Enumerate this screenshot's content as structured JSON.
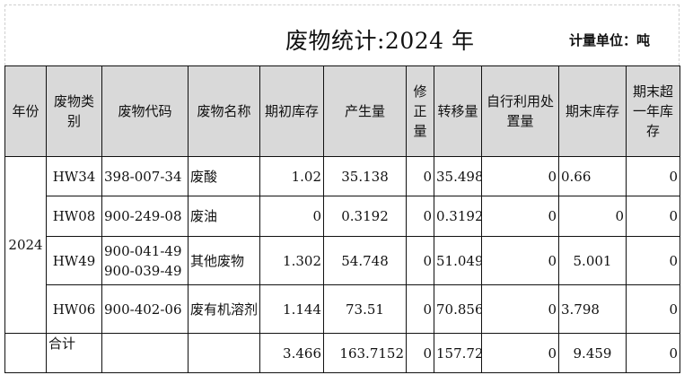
{
  "title": "废物统计:2024 年",
  "unit": "计量单位：吨",
  "headers": [
    "年份",
    "废物类别",
    "废物代码",
    "废物名称",
    "期初库存",
    "产生量",
    "修正量",
    "转移量",
    "自行利用处置量",
    "期末库存",
    "期末超一年库存"
  ],
  "year": "2024",
  "rows": [
    {
      "category": "HW34",
      "code": "398-007-34",
      "name": "废酸",
      "opening": "1.02",
      "generated": "35.138",
      "correction": "0",
      "transferred": "35.498",
      "self_used": "0",
      "closing": "0.66",
      "over_one_year": "0"
    },
    {
      "category": "HW08",
      "code": "900-249-08",
      "name": "废油",
      "opening": "0",
      "generated": "0.3192",
      "correction": "0",
      "transferred": "0.3192",
      "self_used": "0",
      "closing": "0",
      "over_one_year": "0"
    },
    {
      "category": "HW49",
      "code": "900-041-49\n900-039-49",
      "name": "其他废物",
      "opening": "1.302",
      "generated": "54.748",
      "correction": "0",
      "transferred": "51.049",
      "self_used": "0",
      "closing": "5.001",
      "over_one_year": "0"
    },
    {
      "category": "HW06",
      "code": "900-402-06",
      "name": "废有机溶剂",
      "opening": "1.144",
      "generated": "73.51",
      "correction": "0",
      "transferred": "70.856",
      "self_used": "0",
      "closing": "3.798",
      "over_one_year": "0"
    }
  ],
  "total": {
    "label": "合计",
    "opening": "3.466",
    "generated": "163.7152",
    "correction": "0",
    "transferred": "157.7222",
    "self_used": "0",
    "closing": "9.459",
    "over_one_year": "0"
  }
}
